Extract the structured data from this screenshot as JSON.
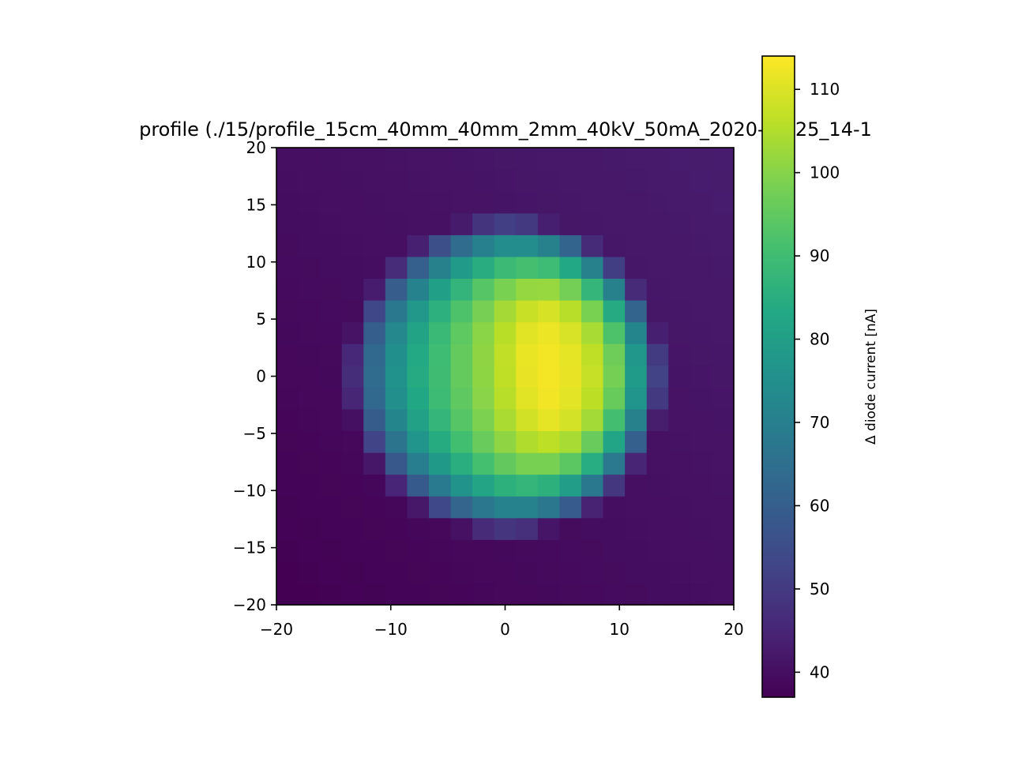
{
  "chart_data": {
    "type": "heatmap",
    "title": "profile (./15/profile_15cm_40mm_40mm_2mm_40kV_50mA_2020-11-25_14-1",
    "xlim": [
      -20,
      20
    ],
    "ylim": [
      -20,
      20
    ],
    "x_ticks": [
      -20,
      -10,
      0,
      10,
      20
    ],
    "y_ticks": [
      -20,
      -15,
      -10,
      -5,
      0,
      5,
      10,
      15,
      20
    ],
    "x_tick_labels": [
      "−20",
      "−10",
      "0",
      "10",
      "20"
    ],
    "y_tick_labels": [
      "−20",
      "−15",
      "−10",
      "−5",
      "0",
      "5",
      "10",
      "15",
      "20"
    ],
    "colormap": "viridis",
    "grid": false,
    "colorbar": {
      "label": "Δ diode current [nA]",
      "range": [
        37,
        114
      ],
      "ticks": [
        40,
        50,
        60,
        70,
        80,
        90,
        100,
        110
      ],
      "tick_labels": [
        "40",
        "50",
        "60",
        "70",
        "80",
        "90",
        "100",
        "110"
      ]
    },
    "grid_cells": {
      "nx": 21,
      "ny": 21,
      "x_range": [
        -20,
        20
      ],
      "y_range": [
        -20,
        20
      ]
    },
    "peak_current_nA": 113,
    "background_current_nA": 40,
    "beam_center": [
      6,
      1
    ],
    "beam_radius_mm": 14
  }
}
